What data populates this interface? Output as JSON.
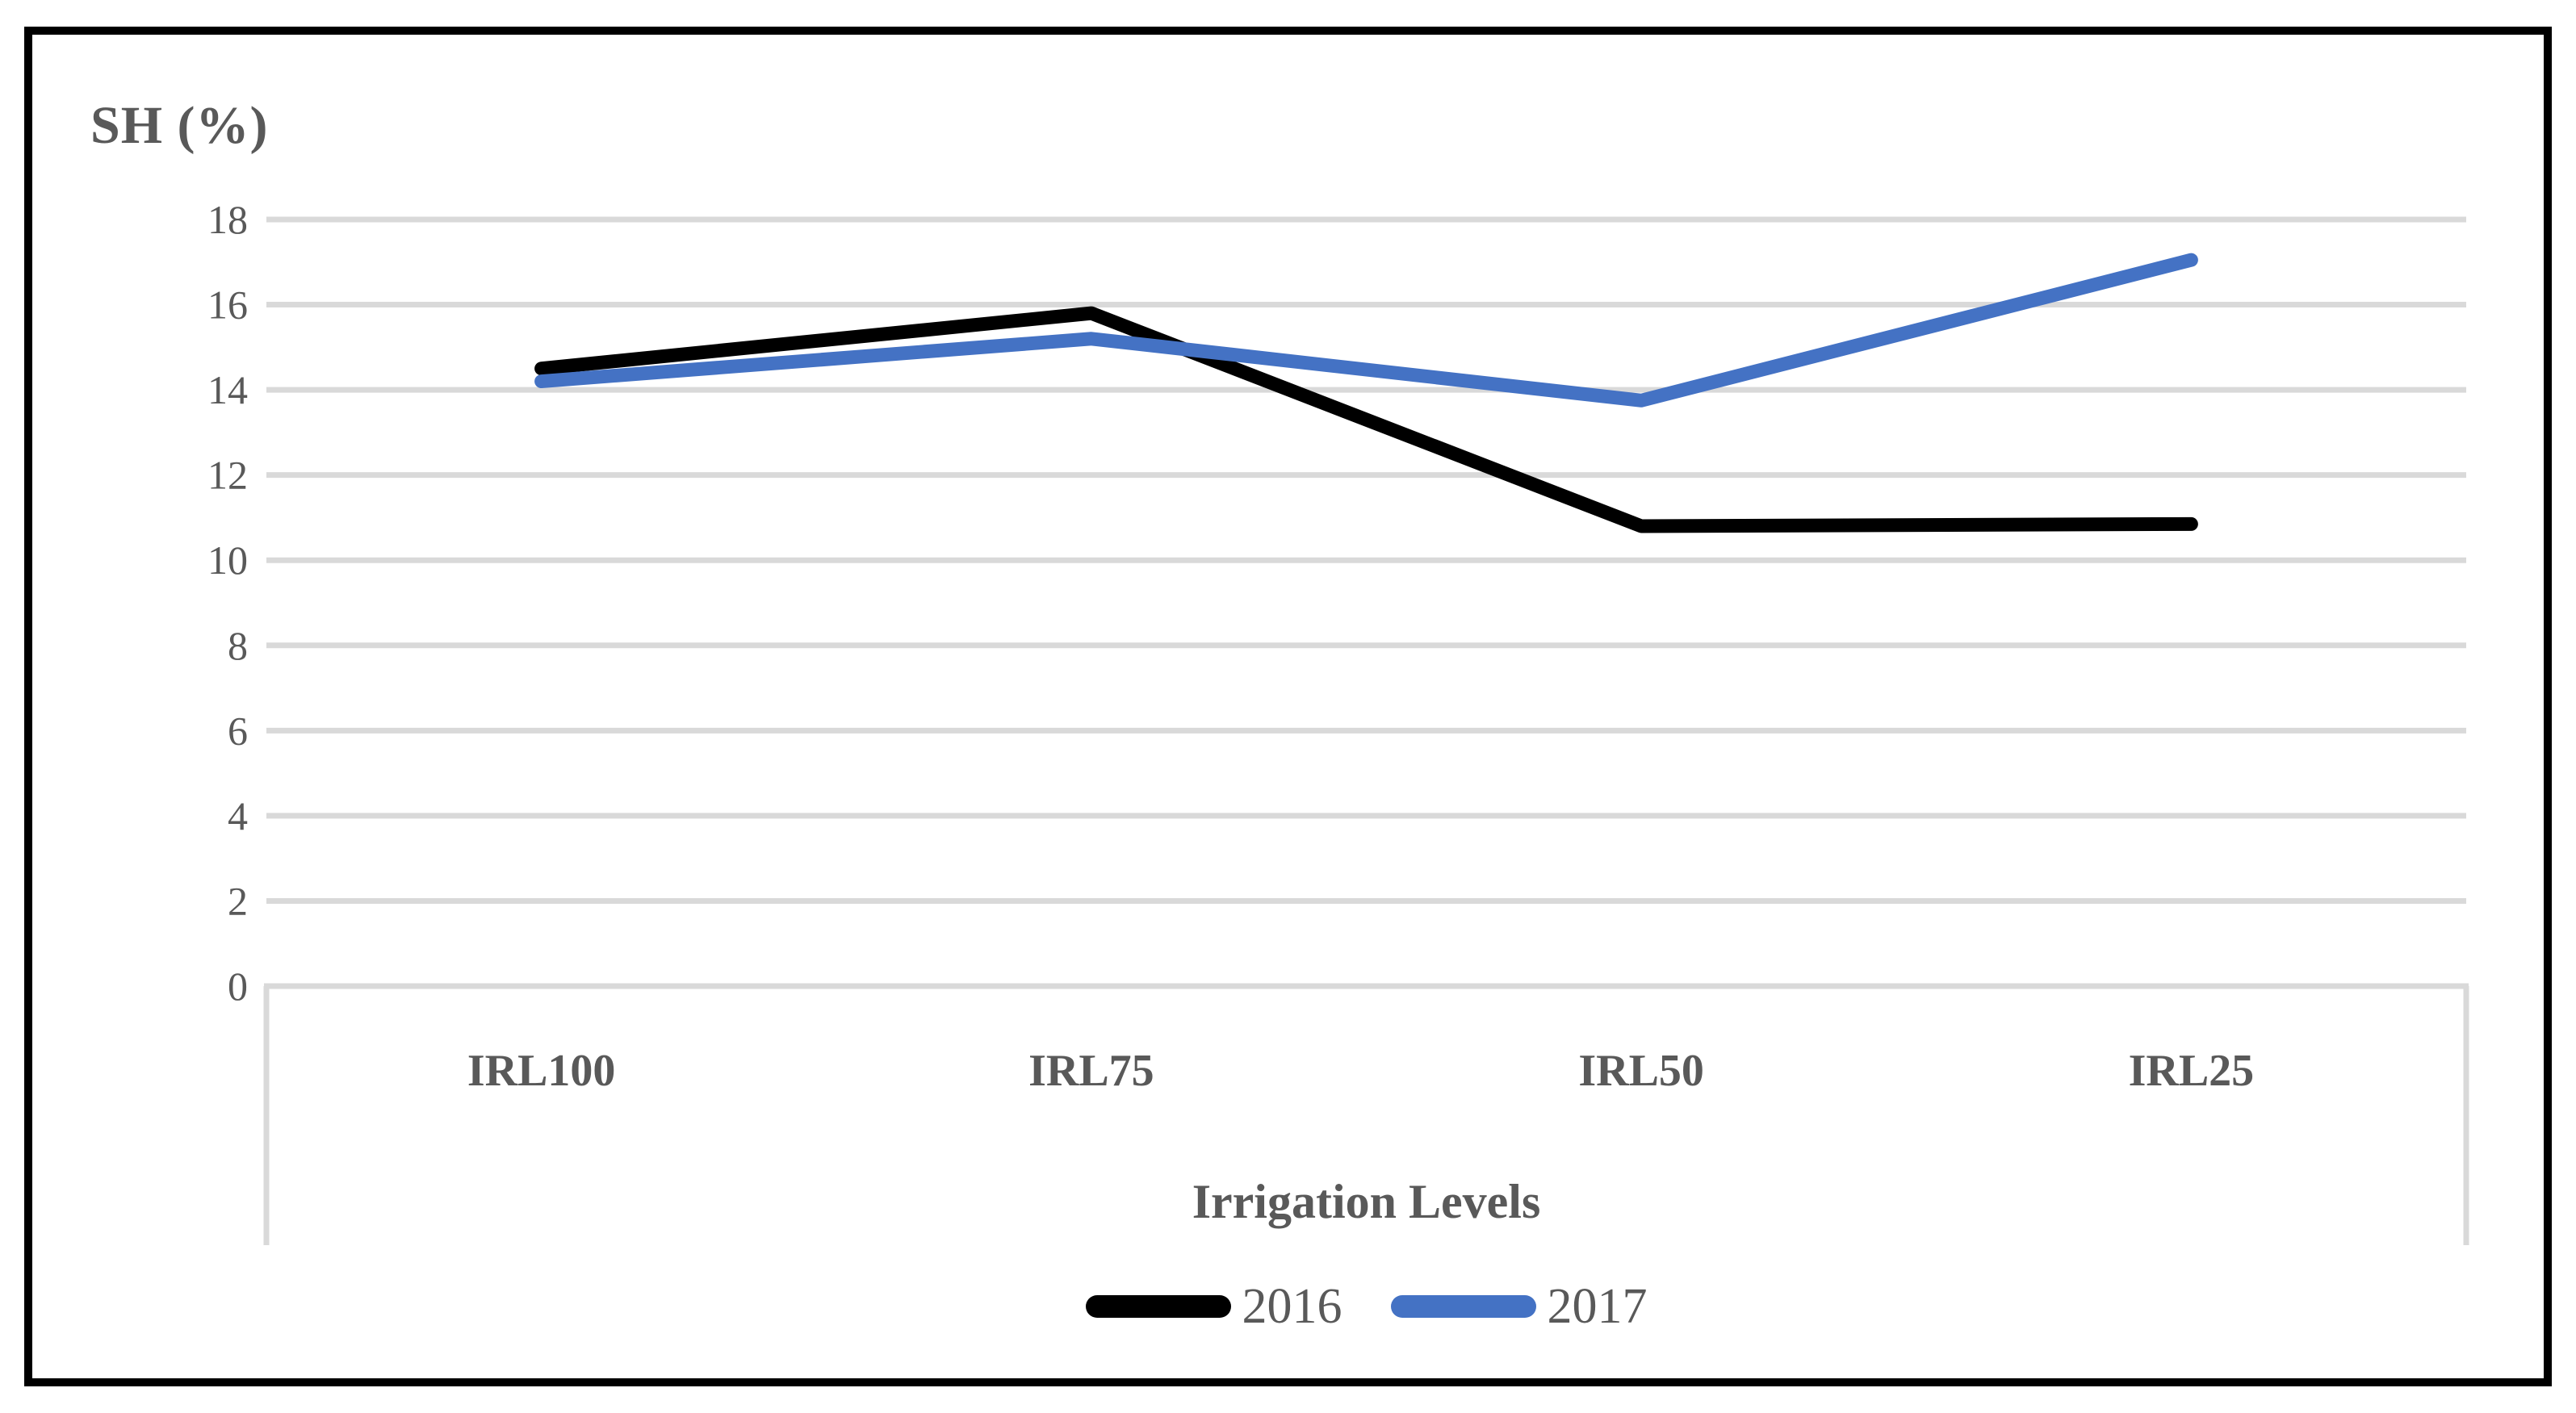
{
  "chart_data": {
    "type": "line",
    "title": "",
    "ylabel": "SH (%)",
    "xlabel": "Irrigation Levels",
    "categories": [
      "IRL100",
      "IRL75",
      "IRL50",
      "IRL25"
    ],
    "series": [
      {
        "name": "2016",
        "color": "#000000",
        "values": [
          14.5,
          15.8,
          10.8,
          10.85
        ]
      },
      {
        "name": "2017",
        "color": "#4472C4",
        "values": [
          14.2,
          15.2,
          13.75,
          17.05
        ]
      }
    ],
    "ylim": [
      0,
      18
    ],
    "yticks": [
      0,
      2,
      4,
      6,
      8,
      10,
      12,
      14,
      16,
      18
    ],
    "grid": true,
    "legend_position": "bottom",
    "colors": {
      "text": "#595959",
      "gridline": "#D9D9D9",
      "axis": "#D9D9D9",
      "frame_border": "#000000",
      "background": "#FFFFFF"
    }
  }
}
